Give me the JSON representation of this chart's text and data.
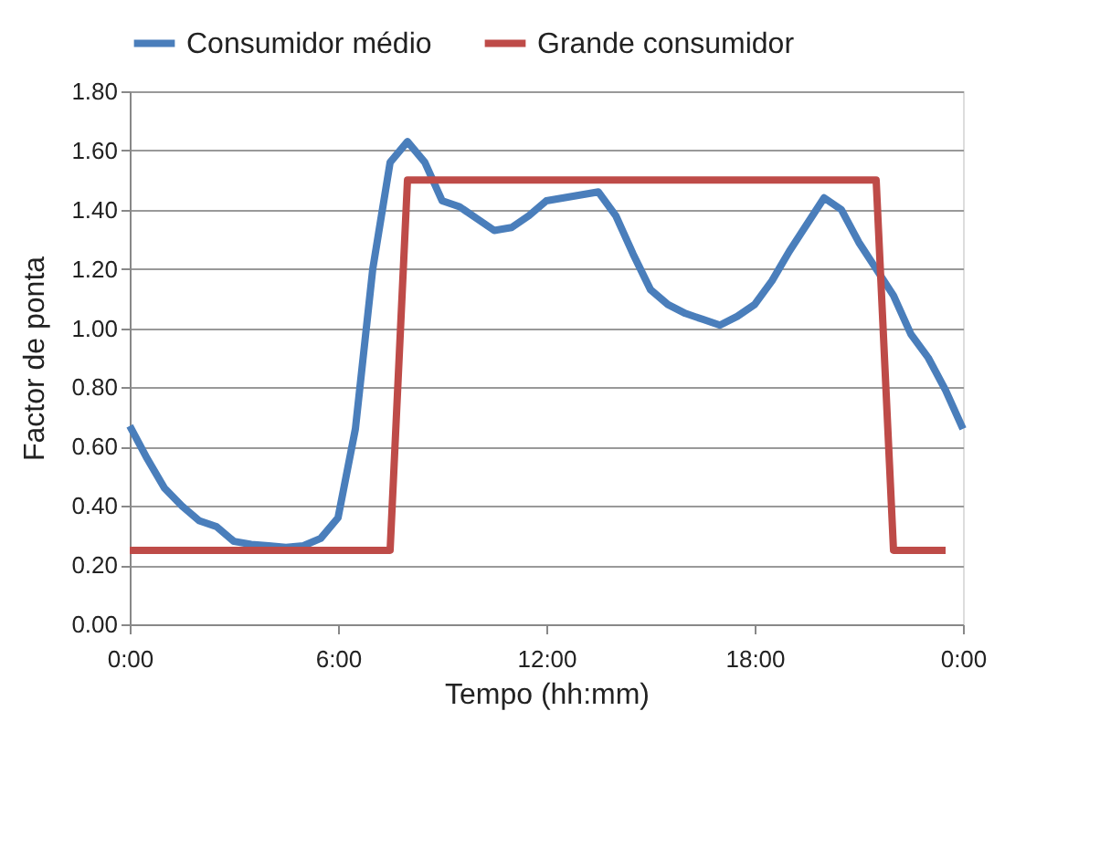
{
  "chart_data": {
    "type": "line",
    "xlabel": "Tempo (hh:mm)",
    "ylabel": "Factor de ponta",
    "series": [
      {
        "name": "Consumidor médio",
        "color": "#4a7ebb",
        "x": [
          0,
          0.5,
          1,
          1.5,
          2,
          2.5,
          3,
          3.5,
          4,
          4.5,
          5,
          5.5,
          6,
          6.5,
          7,
          7.5,
          8,
          8.5,
          9,
          9.5,
          10,
          10.5,
          11,
          11.5,
          12,
          12.5,
          13,
          13.5,
          14,
          14.5,
          15,
          15.5,
          16,
          16.5,
          17,
          17.5,
          18,
          18.5,
          19,
          19.5,
          20,
          20.5,
          21,
          21.5,
          22,
          22.5,
          23,
          23.5,
          24
        ],
        "values": [
          0.67,
          0.56,
          0.46,
          0.4,
          0.35,
          0.33,
          0.28,
          0.27,
          0.265,
          0.26,
          0.265,
          0.29,
          0.36,
          0.66,
          1.2,
          1.56,
          1.63,
          1.56,
          1.43,
          1.41,
          1.37,
          1.33,
          1.34,
          1.38,
          1.43,
          1.44,
          1.45,
          1.46,
          1.38,
          1.25,
          1.13,
          1.08,
          1.05,
          1.03,
          1.01,
          1.04,
          1.08,
          1.16,
          1.26,
          1.35,
          1.44,
          1.4,
          1.29,
          1.2,
          1.11,
          0.98,
          0.9,
          0.79,
          0.66
        ]
      },
      {
        "name": "Grande consumidor",
        "color": "#be4b48",
        "x": [
          0,
          7.5,
          8,
          21.5,
          22,
          23.5
        ],
        "values": [
          0.25,
          0.25,
          1.5,
          1.5,
          0.25,
          0.25
        ]
      }
    ],
    "xlim": [
      0,
      24
    ],
    "xticks": [
      {
        "value": 0,
        "label": "0:00"
      },
      {
        "value": 6,
        "label": "6:00"
      },
      {
        "value": 12,
        "label": "12:00"
      },
      {
        "value": 18,
        "label": "18:00"
      },
      {
        "value": 24,
        "label": "0:00"
      }
    ],
    "ylim": [
      0,
      1.8
    ],
    "yticks": [
      {
        "value": 0,
        "label": "0.00"
      },
      {
        "value": 0.2,
        "label": "0.20"
      },
      {
        "value": 0.4,
        "label": "0.40"
      },
      {
        "value": 0.6,
        "label": "0.60"
      },
      {
        "value": 0.8,
        "label": "0.80"
      },
      {
        "value": 1.0,
        "label": "1.00"
      },
      {
        "value": 1.2,
        "label": "1.20"
      },
      {
        "value": 1.4,
        "label": "1.40"
      },
      {
        "value": 1.6,
        "label": "1.60"
      },
      {
        "value": 1.8,
        "label": "1.80"
      }
    ],
    "grid": "y",
    "legend": "top",
    "line_style": "solid",
    "marker": "none"
  }
}
